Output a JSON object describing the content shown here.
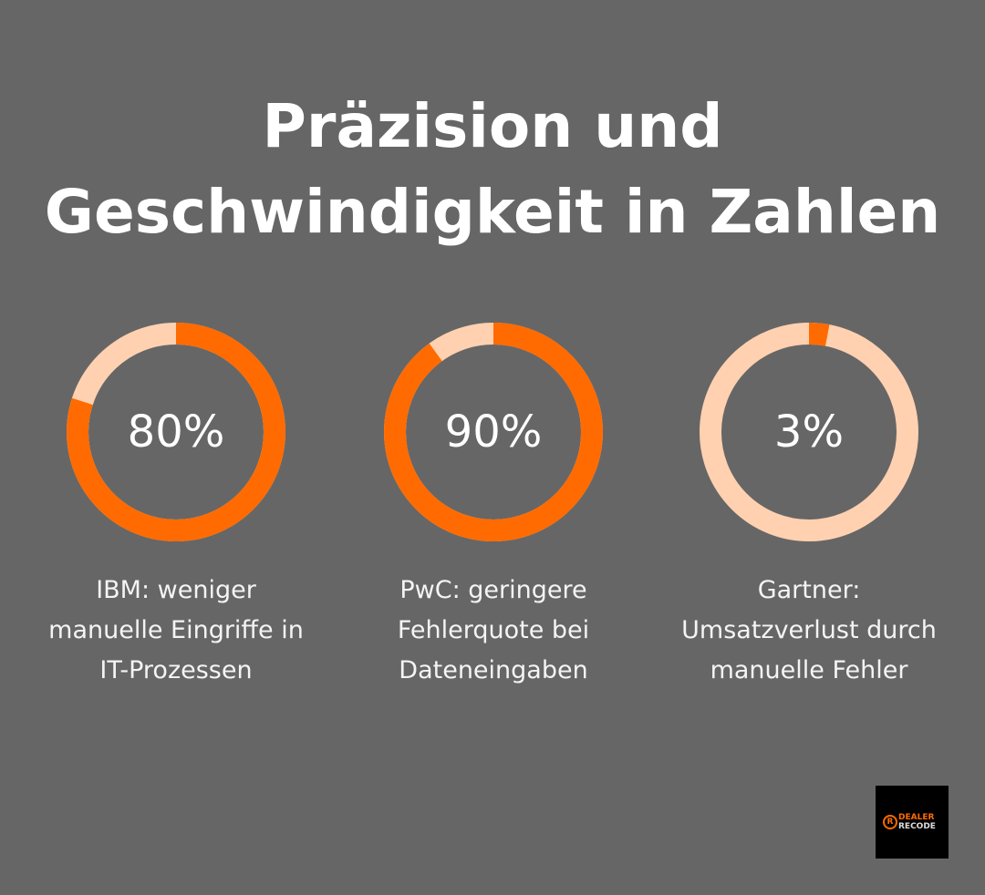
{
  "title_line1": "Präzision und",
  "title_line2": "Geschwindigkeit in Zahlen",
  "colors": {
    "background": "#666666",
    "accent": "#FF6B00",
    "remainder": "#FFD1B0"
  },
  "chart_data": [
    {
      "type": "pie",
      "variant": "donut",
      "value": 80,
      "label": "80%",
      "caption": [
        "IBM: weniger",
        "manuelle Eingriffe in",
        "IT-Prozessen"
      ]
    },
    {
      "type": "pie",
      "variant": "donut",
      "value": 90,
      "label": "90%",
      "caption": [
        "PwC: geringere",
        "Fehlerquote bei",
        "Dateneingaben"
      ]
    },
    {
      "type": "pie",
      "variant": "donut",
      "value": 3,
      "label": "3%",
      "caption": [
        "Gartner:",
        "Umsatzverlust durch",
        "manuelle Fehler"
      ]
    }
  ],
  "logo": {
    "line1": "DEALER",
    "line2": "RECODE",
    "mark": "R"
  }
}
